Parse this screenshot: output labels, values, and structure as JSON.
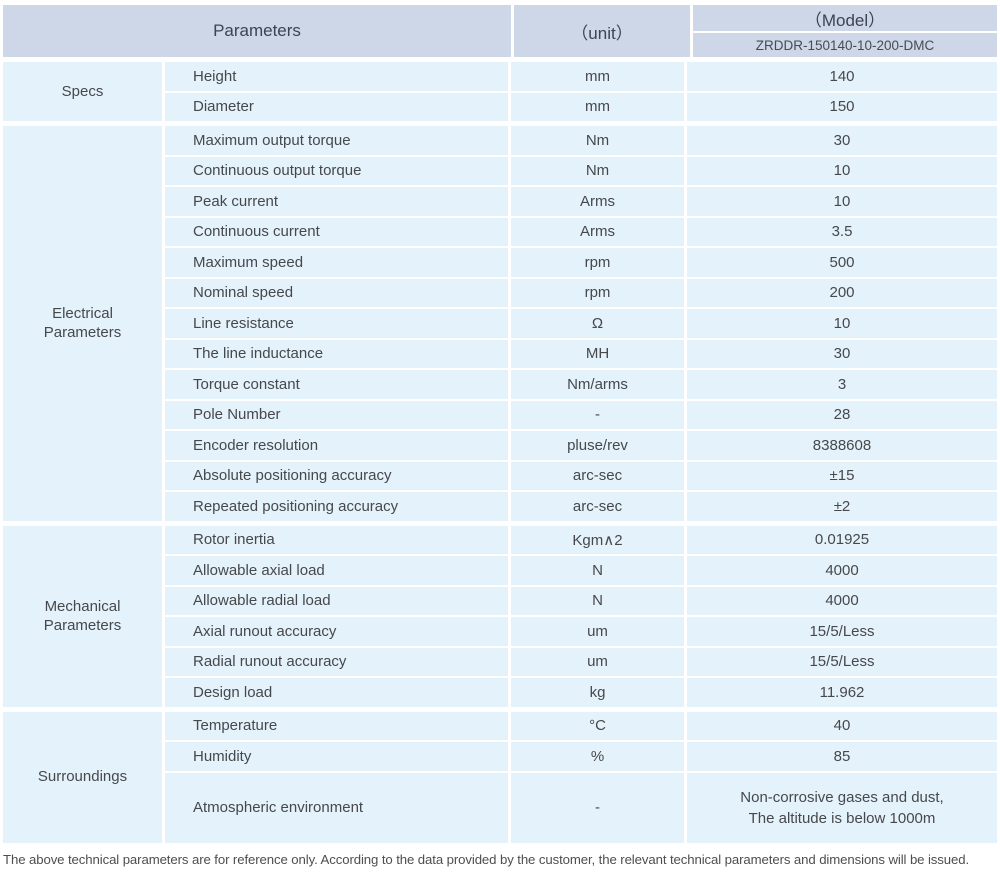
{
  "colors": {
    "header_bg": "#cdd7e7",
    "row_bg": "#e4f2fb",
    "divider": "#ffffff",
    "text": "#46484b"
  },
  "header": {
    "parameters_label": "Parameters",
    "unit_label": "（unit）",
    "model_label": "（Model）",
    "model_value": "ZRDDR-150140-10-200-DMC"
  },
  "sections": [
    {
      "label_lines": [
        "Specs"
      ],
      "rows": [
        {
          "param": "Height",
          "unit": "mm",
          "value": "140"
        },
        {
          "param": "Diameter",
          "unit": "mm",
          "value": "150"
        }
      ]
    },
    {
      "label_lines": [
        "Electrical",
        "Parameters"
      ],
      "rows": [
        {
          "param": "Maximum output torque",
          "unit": "Nm",
          "value": "30"
        },
        {
          "param": "Continuous output torque",
          "unit": "Nm",
          "value": "10"
        },
        {
          "param": "Peak current",
          "unit": "Arms",
          "value": "10"
        },
        {
          "param": "Continuous current",
          "unit": "Arms",
          "value": "3.5"
        },
        {
          "param": "Maximum speed",
          "unit": "rpm",
          "value": "500"
        },
        {
          "param": "Nominal speed",
          "unit": "rpm",
          "value": "200"
        },
        {
          "param": "Line resistance",
          "unit": "Ω",
          "value": "10"
        },
        {
          "param": "The line inductance",
          "unit": "MH",
          "value": "30"
        },
        {
          "param": "Torque constant",
          "unit": "Nm/arms",
          "value": "3"
        },
        {
          "param": "Pole Number",
          "unit": "-",
          "value": "28"
        },
        {
          "param": "Encoder resolution",
          "unit": "pluse/rev",
          "value": "8388608"
        },
        {
          "param": "Absolute positioning accuracy",
          "unit": "arc-sec",
          "value": "±15"
        },
        {
          "param": "Repeated positioning accuracy",
          "unit": "arc-sec",
          "value": "±2"
        }
      ]
    },
    {
      "label_lines": [
        "Mechanical",
        "Parameters"
      ],
      "rows": [
        {
          "param": "Rotor inertia",
          "unit": "Kgm∧2",
          "value": "0.01925"
        },
        {
          "param": "Allowable axial load",
          "unit": "N",
          "value": "4000"
        },
        {
          "param": "Allowable radial load",
          "unit": "N",
          "value": "4000"
        },
        {
          "param": "Axial runout accuracy",
          "unit": "um",
          "value": "15/5/Less"
        },
        {
          "param": "Radial runout accuracy",
          "unit": "um",
          "value": "15/5/Less"
        },
        {
          "param": "Design load",
          "unit": "kg",
          "value": "11.962"
        }
      ]
    },
    {
      "label_lines": [
        "Surroundings"
      ],
      "rows": [
        {
          "param": "Temperature",
          "unit": "°C",
          "value": "40"
        },
        {
          "param": "Humidity",
          "unit": "%",
          "value": "85"
        },
        {
          "param": "Atmospheric environment",
          "unit": "-",
          "value_lines": [
            "Non-corrosive gases and dust,",
            "The altitude is below 1000m"
          ],
          "tall": true
        }
      ]
    }
  ],
  "footer": {
    "note": "The above technical parameters are for reference only. According to the data provided by the customer, the relevant technical parameters and dimensions will be issued."
  }
}
